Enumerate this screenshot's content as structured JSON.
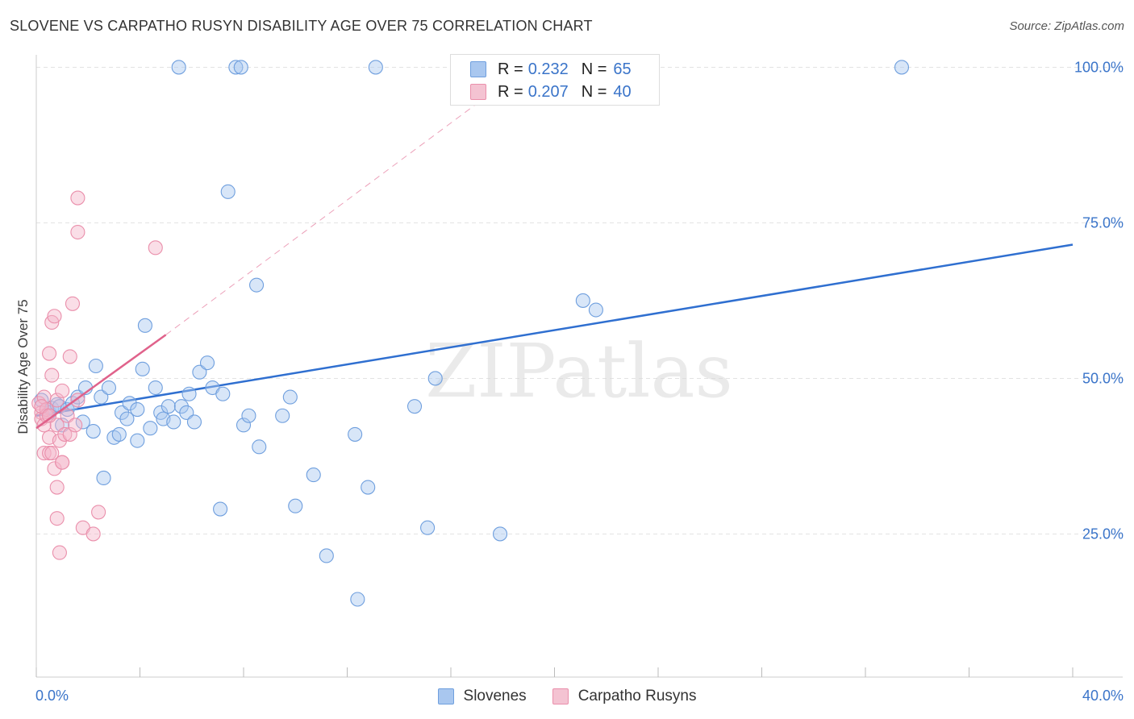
{
  "title": "SLOVENE VS CARPATHO RUSYN DISABILITY AGE OVER 75 CORRELATION CHART",
  "source": "Source: ZipAtlas.com",
  "watermark": "ZIPatlas",
  "legend_top": [
    {
      "r_label": "R =",
      "r_value": "0.232",
      "n_label": "N =",
      "n_value": "65"
    },
    {
      "r_label": "R =",
      "r_value": "0.207",
      "n_label": "N =",
      "n_value": "40"
    }
  ],
  "legend_bottom": [
    {
      "label": "Slovenes"
    },
    {
      "label": "Carpatho Rusyns"
    }
  ],
  "colors": {
    "slovenes_fill": "#a9c7ef",
    "slovenes_stroke": "#6f9fde",
    "slovenes_line": "#2f6fd0",
    "rusyns_fill": "#f4b5c9",
    "rusyns_stroke": "#ea8fab",
    "rusyns_line": "#e0628b",
    "axis_tick": "#3a74c9"
  },
  "chart_data": {
    "type": "scatter",
    "title": "SLOVENE VS CARPATHO RUSYN DISABILITY AGE OVER 75 CORRELATION CHART",
    "xlabel": "",
    "ylabel": "Disability Age Over 75",
    "xlim": [
      0,
      40
    ],
    "ylim": [
      2,
      102
    ],
    "x_tick_labels": [
      "0.0%",
      "40.0%"
    ],
    "y_ticks": [
      25,
      50,
      75,
      100
    ],
    "y_tick_labels": [
      "25.0%",
      "50.0%",
      "75.0%",
      "100.0%"
    ],
    "grid": true,
    "legend_position": "top-center",
    "series": [
      {
        "name": "Slovenes",
        "r": 0.232,
        "n": 65,
        "trend": {
          "x": [
            0,
            40
          ],
          "y": [
            44.0,
            71.5
          ],
          "style": "solid"
        },
        "points": [
          [
            0.2,
            46.5
          ],
          [
            0.4,
            45.0
          ],
          [
            0.5,
            44.5
          ],
          [
            0.6,
            45.2
          ],
          [
            0.8,
            45.8
          ],
          [
            0.9,
            45.5
          ],
          [
            1.0,
            42.5
          ],
          [
            1.2,
            45.0
          ],
          [
            1.4,
            46.0
          ],
          [
            1.6,
            47.0
          ],
          [
            1.8,
            43.0
          ],
          [
            1.9,
            48.5
          ],
          [
            2.2,
            41.5
          ],
          [
            2.3,
            52.0
          ],
          [
            2.5,
            47.0
          ],
          [
            2.6,
            34.0
          ],
          [
            2.8,
            48.5
          ],
          [
            3.0,
            40.5
          ],
          [
            3.2,
            41.0
          ],
          [
            3.3,
            44.5
          ],
          [
            3.5,
            43.5
          ],
          [
            3.6,
            46.0
          ],
          [
            3.9,
            45.0
          ],
          [
            3.9,
            40.0
          ],
          [
            4.1,
            51.5
          ],
          [
            4.2,
            58.5
          ],
          [
            4.4,
            42.0
          ],
          [
            4.6,
            48.5
          ],
          [
            4.8,
            44.5
          ],
          [
            4.9,
            43.5
          ],
          [
            5.1,
            45.5
          ],
          [
            5.3,
            43.0
          ],
          [
            5.6,
            45.5
          ],
          [
            5.8,
            44.5
          ],
          [
            5.9,
            47.5
          ],
          [
            6.1,
            43.0
          ],
          [
            6.3,
            51.0
          ],
          [
            6.6,
            52.5
          ],
          [
            6.8,
            48.5
          ],
          [
            7.1,
            29.0
          ],
          [
            7.2,
            47.5
          ],
          [
            7.4,
            80.0
          ],
          [
            8.0,
            42.5
          ],
          [
            8.2,
            44.0
          ],
          [
            8.5,
            65.0
          ],
          [
            8.6,
            39.0
          ],
          [
            9.5,
            44.0
          ],
          [
            9.8,
            47.0
          ],
          [
            10.0,
            29.5
          ],
          [
            10.7,
            34.5
          ],
          [
            11.2,
            21.5
          ],
          [
            12.3,
            41.0
          ],
          [
            12.4,
            14.5
          ],
          [
            12.8,
            32.5
          ],
          [
            14.6,
            45.5
          ],
          [
            15.1,
            26.0
          ],
          [
            15.4,
            50.0
          ],
          [
            17.9,
            25.0
          ],
          [
            21.1,
            62.5
          ],
          [
            21.6,
            61.0
          ],
          [
            5.5,
            100.0
          ],
          [
            7.7,
            100.0
          ],
          [
            7.9,
            100.0
          ],
          [
            13.1,
            100.0
          ],
          [
            33.4,
            100.0
          ]
        ]
      },
      {
        "name": "Carpatho Rusyns",
        "r": 0.207,
        "n": 40,
        "trend": {
          "x": [
            0,
            5.0
          ],
          "y": [
            42.0,
            57.0
          ],
          "style": "solid",
          "extension": {
            "x": [
              5.0,
              17.6
            ],
            "y": [
              57.0,
              96.0
            ],
            "style": "dashed"
          }
        },
        "points": [
          [
            0.1,
            46.0
          ],
          [
            0.2,
            44.5
          ],
          [
            0.2,
            43.5
          ],
          [
            0.3,
            47.0
          ],
          [
            0.3,
            42.5
          ],
          [
            0.3,
            38.0
          ],
          [
            0.4,
            45.0
          ],
          [
            0.4,
            44.0
          ],
          [
            0.5,
            40.5
          ],
          [
            0.5,
            38.0
          ],
          [
            0.5,
            54.0
          ],
          [
            0.6,
            59.0
          ],
          [
            0.6,
            50.5
          ],
          [
            0.6,
            38.0
          ],
          [
            0.7,
            35.5
          ],
          [
            0.7,
            60.0
          ],
          [
            0.8,
            46.5
          ],
          [
            0.8,
            42.5
          ],
          [
            0.8,
            32.5
          ],
          [
            0.8,
            27.5
          ],
          [
            0.9,
            22.0
          ],
          [
            0.9,
            40.0
          ],
          [
            1.0,
            36.5
          ],
          [
            1.0,
            48.0
          ],
          [
            1.0,
            36.5
          ],
          [
            1.1,
            41.0
          ],
          [
            1.2,
            44.0
          ],
          [
            1.3,
            53.5
          ],
          [
            1.3,
            41.0
          ],
          [
            1.4,
            62.0
          ],
          [
            1.5,
            42.5
          ],
          [
            1.6,
            79.0
          ],
          [
            1.6,
            73.5
          ],
          [
            1.6,
            46.5
          ],
          [
            1.8,
            26.0
          ],
          [
            2.2,
            25.0
          ],
          [
            2.4,
            28.5
          ],
          [
            4.6,
            71.0
          ],
          [
            0.2,
            45.5
          ],
          [
            0.5,
            44.0
          ]
        ]
      }
    ]
  }
}
